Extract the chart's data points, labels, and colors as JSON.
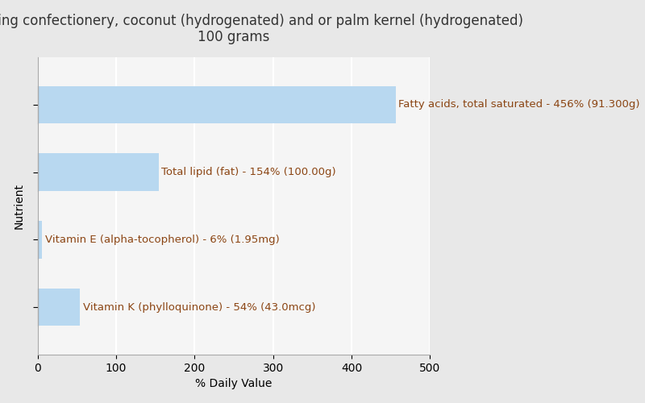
{
  "title_line1": "Shortening confectionery, coconut (hydrogenated) and or palm kernel (hydrogenated)",
  "title_line2": "100 grams",
  "xlabel": "% Daily Value",
  "ylabel": "Nutrient",
  "background_color": "#e8e8e8",
  "plot_background_color": "#f5f5f5",
  "bar_color": "#b8d8f0",
  "label_color": "#8b4513",
  "nutrients": [
    "Fatty acids, total saturated - 456% (91.300g)",
    "Total lipid (fat) - 154% (100.00g)",
    "Vitamin E (alpha-tocopherol) - 6% (1.95mg)",
    "Vitamin K (phylloquinone) - 54% (43.0mcg)"
  ],
  "values": [
    456,
    154,
    6,
    54
  ],
  "xlim": [
    0,
    500
  ],
  "xticks": [
    0,
    100,
    200,
    300,
    400,
    500
  ],
  "title_fontsize": 12,
  "label_fontsize": 9.5,
  "axis_label_fontsize": 10,
  "tick_fontsize": 10,
  "bar_height": 0.55
}
